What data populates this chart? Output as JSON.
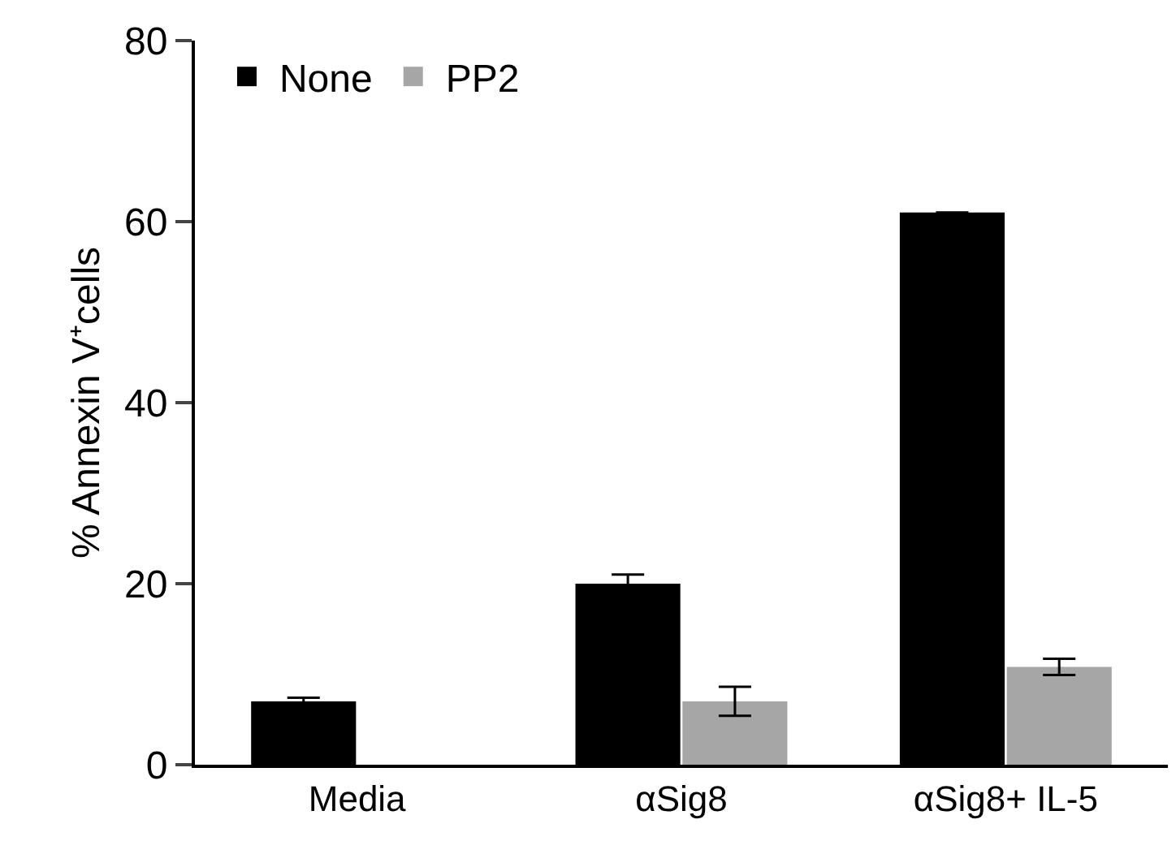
{
  "chart_data": {
    "type": "bar",
    "ylabel": "% Annexin V⁺cells",
    "categories": [
      "Media",
      "αSig8",
      "αSig8+ IL-5"
    ],
    "series": [
      {
        "name": "None",
        "color": "#000000",
        "values": [
          7,
          20,
          61
        ],
        "errors": [
          0.4,
          1,
          null
        ]
      },
      {
        "name": "PP2",
        "color": "#a6a6a6",
        "values": [
          null,
          7,
          10.8
        ],
        "errors": [
          null,
          1.6,
          0.9
        ]
      }
    ],
    "ylim": [
      0,
      80
    ],
    "yticks": [
      0,
      20,
      40,
      60,
      80
    ],
    "grid": false,
    "legend": "top left"
  }
}
